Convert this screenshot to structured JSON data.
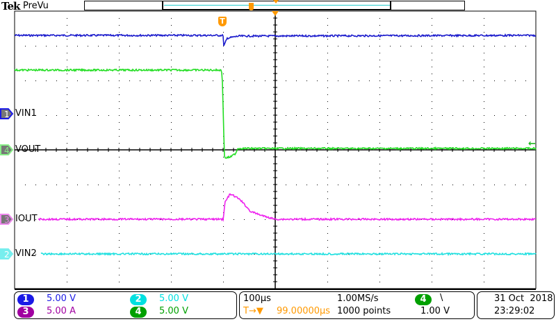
{
  "header": {
    "brand": "Tek",
    "mode": "PreVu",
    "trigger_marker": "T"
  },
  "colors": {
    "ch1": "#1a1ae6",
    "ch2": "#00e0e0",
    "ch3": "#a000a0",
    "ch4": "#00a000",
    "ch1_trace": "#1a1acc",
    "ch2_trace": "#20e0e0",
    "ch3_trace": "#ee22ee",
    "ch4_trace": "#22dd22",
    "trigger": "#ff9900"
  },
  "channels": [
    {
      "num": "1",
      "label": "VIN1",
      "scale": "5.00 V"
    },
    {
      "num": "2",
      "label": "VIN2",
      "scale": "5.00 V"
    },
    {
      "num": "3",
      "label": "IOUT",
      "scale": "5.00 A"
    },
    {
      "num": "4",
      "label": "VOUT",
      "scale": "5.00 V"
    }
  ],
  "timebase": {
    "scale": "100µs",
    "sample_rate": "1.00MS/s",
    "record_length": "1000 points",
    "delay": "99.00000µs",
    "delay_icons": "T→▼"
  },
  "trigger": {
    "source": "4",
    "slope_icon": "falling-edge",
    "slope_glyph": "\\",
    "level": "1.00 V"
  },
  "datetime": {
    "date": "31 Oct  2018",
    "time": "23:29:02"
  },
  "chart_data": {
    "type": "line",
    "x_unit": "µs (relative to trigger)",
    "xlim": [
      -400,
      600
    ],
    "grid": true,
    "divisions": {
      "x": 10,
      "y": 8
    },
    "series": [
      {
        "name": "VIN1",
        "unit": "V",
        "points": [
          [
            -400,
            11.2
          ],
          [
            0,
            11.2
          ],
          [
            1,
            9.6
          ],
          [
            8,
            10.8
          ],
          [
            30,
            11.1
          ],
          [
            600,
            11.2
          ]
        ]
      },
      {
        "name": "VOUT",
        "unit": "V",
        "points": [
          [
            -400,
            11.5
          ],
          [
            -3,
            11.5
          ],
          [
            -1,
            9.5
          ],
          [
            2,
            0
          ],
          [
            3,
            -1.2
          ],
          [
            15,
            -1.0
          ],
          [
            24,
            -0.5
          ],
          [
            28,
            0.2
          ],
          [
            600,
            0.2
          ]
        ]
      },
      {
        "name": "IOUT",
        "unit": "A",
        "points": [
          [
            -355,
            0
          ],
          [
            0,
            0
          ],
          [
            4,
            2.5
          ],
          [
            13,
            3.6
          ],
          [
            20,
            3.4
          ],
          [
            33,
            2.8
          ],
          [
            53,
            1.1
          ],
          [
            80,
            0.4
          ],
          [
            100,
            0
          ],
          [
            600,
            0
          ]
        ]
      },
      {
        "name": "VIN2",
        "unit": "V",
        "points": [
          [
            -350,
            0
          ],
          [
            600,
            0
          ]
        ]
      }
    ]
  }
}
